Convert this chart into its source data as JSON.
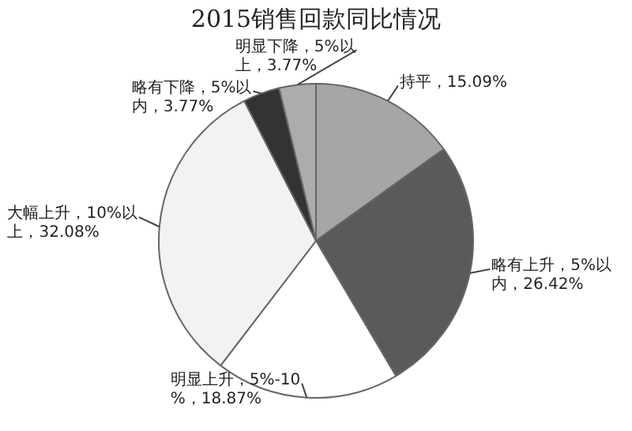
{
  "chart_data": {
    "type": "pie",
    "title": "2015销售回款同比情况",
    "categories": [
      "持平",
      "略有上升，5%以内",
      "明显上升，5%-10%",
      "大幅上升，10%以上",
      "略有下降，5%以内",
      "明显下降，5%以上"
    ],
    "values": [
      15.09,
      26.42,
      18.87,
      32.08,
      3.77,
      3.77
    ],
    "value_labels": [
      "15.09%",
      "26.42%",
      "18.87%",
      "32.08%",
      "3.77%",
      "3.77%"
    ],
    "colors": [
      "#a6a6a6",
      "#5a5a5a",
      "#ffffff",
      "#f2f2f2",
      "#333333",
      "#acacac"
    ],
    "legend": false
  }
}
